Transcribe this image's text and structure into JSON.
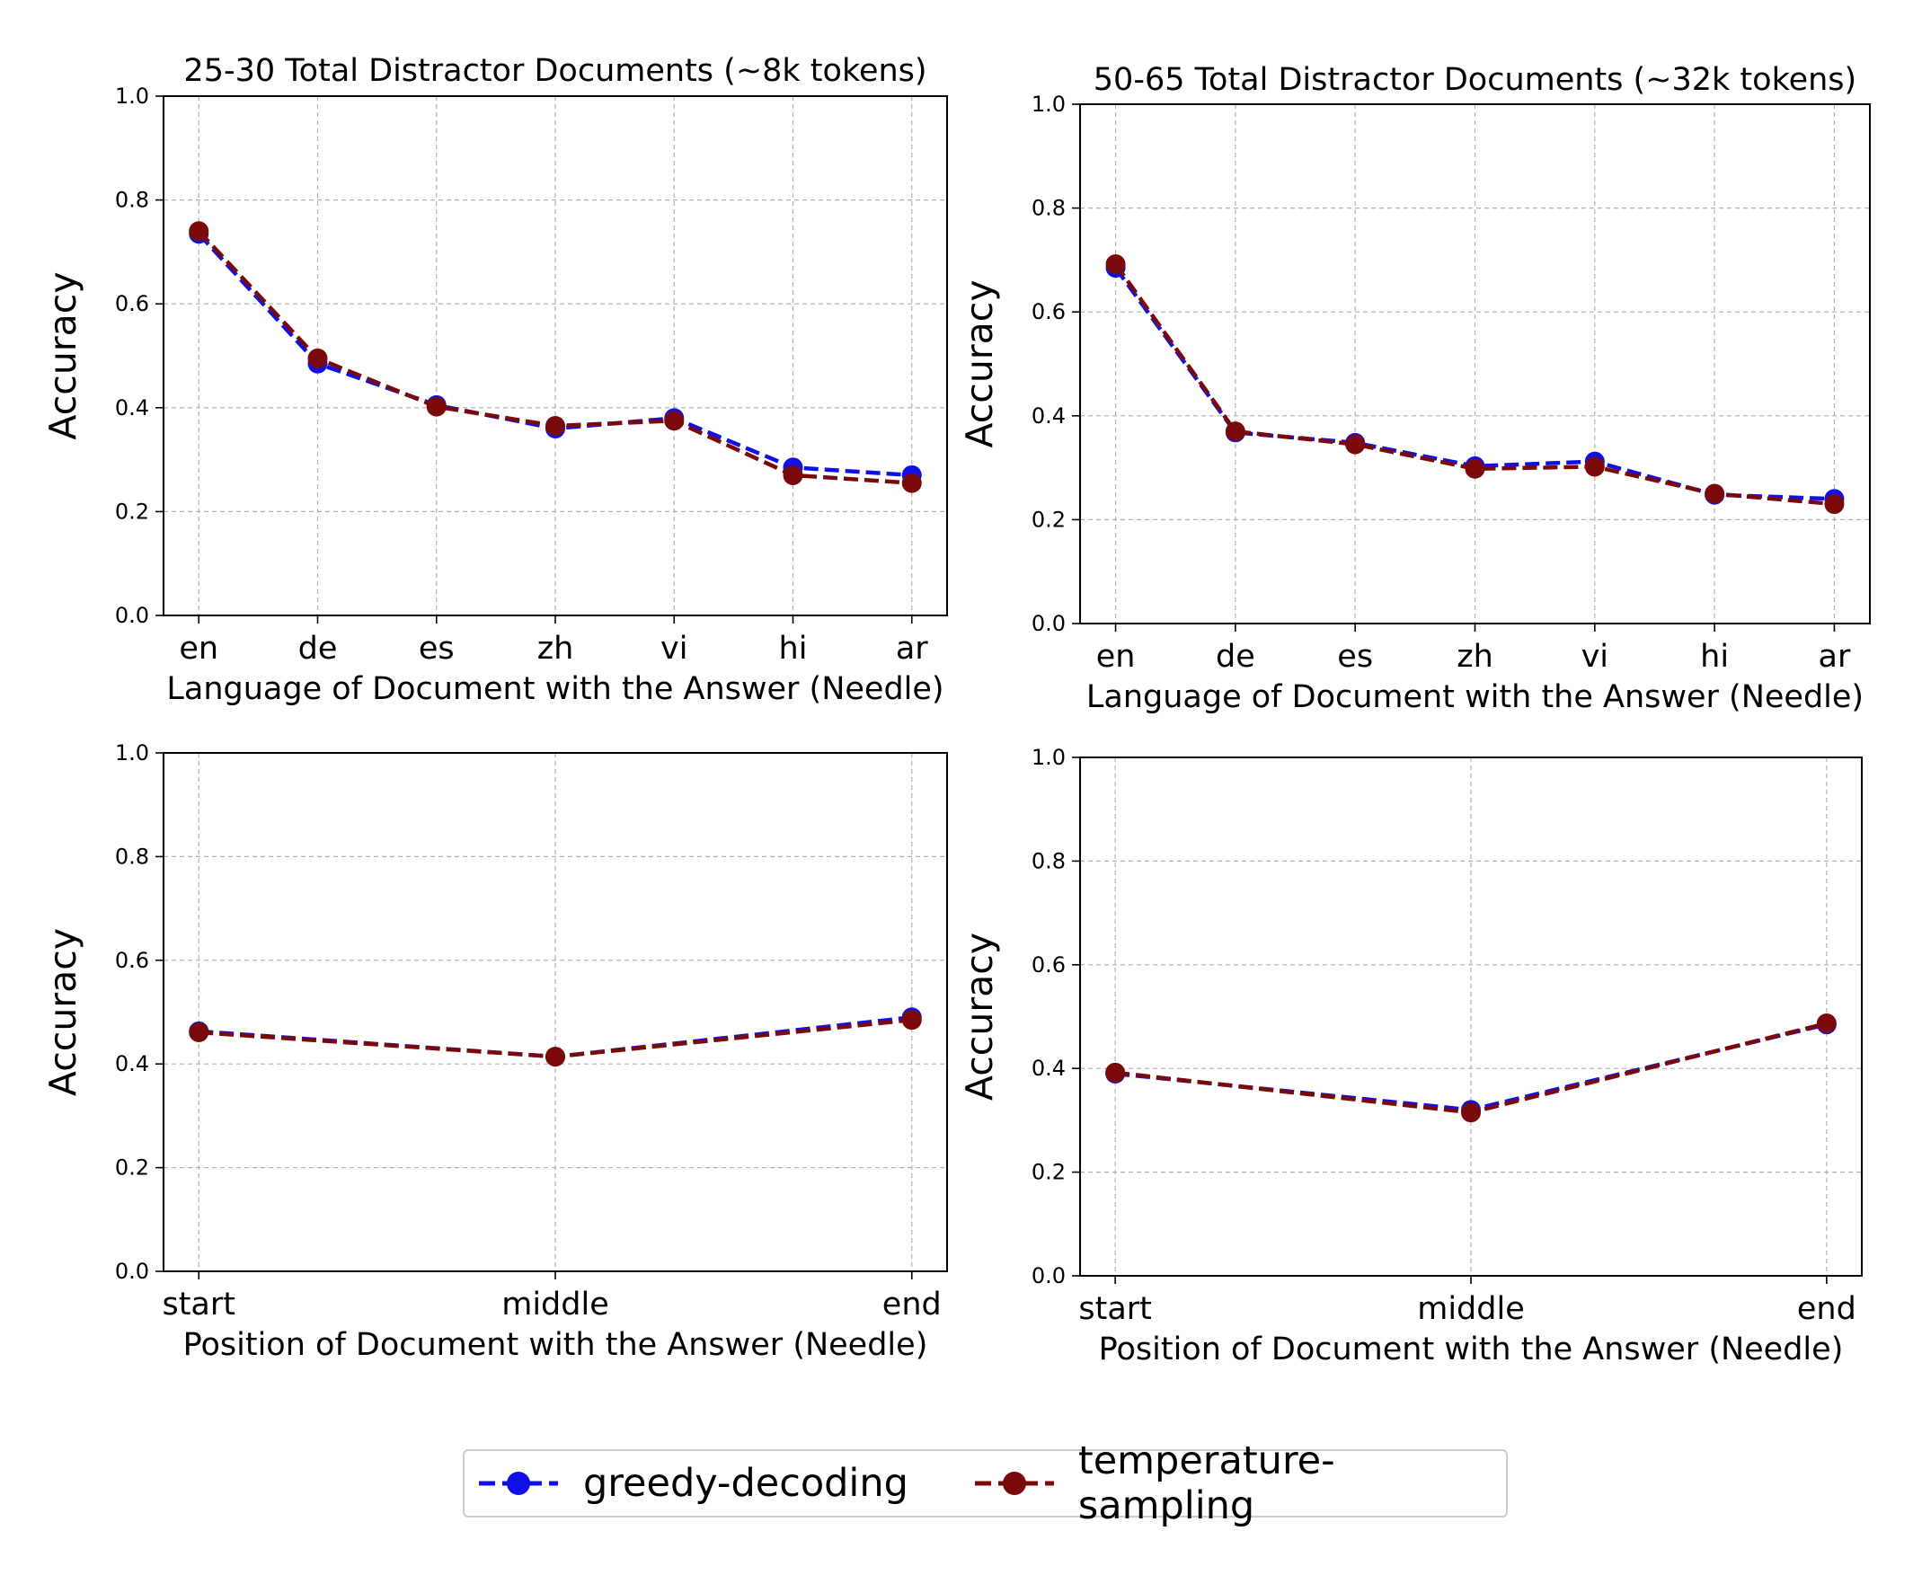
{
  "colors": {
    "greedy": "#1010e6",
    "temperature": "#7a0a0a",
    "grid": "#b0b0b0"
  },
  "legend": {
    "greedy_label": "greedy-decoding",
    "temperature_label": "temperature-sampling",
    "placement": "bottom-center"
  },
  "chart_data": [
    {
      "type": "line",
      "title": "25-30 Total Distractor Documents (~8k tokens)",
      "xlabel": "Language of Document with the Answer (Needle)",
      "ylabel": "Accuracy",
      "categories": [
        "en",
        "de",
        "es",
        "zh",
        "vi",
        "hi",
        "ar"
      ],
      "ylim": [
        0.0,
        1.0
      ],
      "yticks": [
        "0.0",
        "0.2",
        "0.4",
        "0.6",
        "0.8",
        "1.0"
      ],
      "grid": true,
      "series": [
        {
          "name": "greedy-decoding",
          "values": [
            0.735,
            0.485,
            0.405,
            0.36,
            0.38,
            0.285,
            0.27
          ]
        },
        {
          "name": "temperature-sampling",
          "values": [
            0.74,
            0.495,
            0.402,
            0.365,
            0.375,
            0.27,
            0.255
          ]
        }
      ]
    },
    {
      "type": "line",
      "title": "50-65 Total Distractor Documents (~32k tokens)",
      "xlabel": "Language of Document with the Answer (Needle)",
      "ylabel": "Accuracy",
      "categories": [
        "en",
        "de",
        "es",
        "zh",
        "vi",
        "hi",
        "ar"
      ],
      "ylim": [
        0.0,
        1.0
      ],
      "yticks": [
        "0.0",
        "0.2",
        "0.4",
        "0.6",
        "0.8",
        "1.0"
      ],
      "grid": true,
      "series": [
        {
          "name": "greedy-decoding",
          "values": [
            0.685,
            0.368,
            0.348,
            0.303,
            0.312,
            0.248,
            0.24
          ]
        },
        {
          "name": "temperature-sampling",
          "values": [
            0.692,
            0.37,
            0.345,
            0.298,
            0.302,
            0.25,
            0.23
          ]
        }
      ]
    },
    {
      "type": "line",
      "title": "",
      "xlabel": "Position of Document with the Answer (Needle)",
      "ylabel": "Accuracy",
      "categories": [
        "start",
        "middle",
        "end"
      ],
      "ylim": [
        0.0,
        1.0
      ],
      "yticks": [
        "0.0",
        "0.2",
        "0.4",
        "0.6",
        "0.8",
        "1.0"
      ],
      "grid": true,
      "series": [
        {
          "name": "greedy-decoding",
          "values": [
            0.463,
            0.414,
            0.49
          ]
        },
        {
          "name": "temperature-sampling",
          "values": [
            0.461,
            0.414,
            0.485
          ]
        }
      ]
    },
    {
      "type": "line",
      "title": "",
      "xlabel": "Position of Document with the Answer (Needle)",
      "ylabel": "Accuracy",
      "categories": [
        "start",
        "middle",
        "end"
      ],
      "ylim": [
        0.0,
        1.0
      ],
      "yticks": [
        "0.0",
        "0.2",
        "0.4",
        "0.6",
        "0.8",
        "1.0"
      ],
      "grid": true,
      "series": [
        {
          "name": "greedy-decoding",
          "values": [
            0.39,
            0.32,
            0.485
          ]
        },
        {
          "name": "temperature-sampling",
          "values": [
            0.392,
            0.315,
            0.487
          ]
        }
      ]
    }
  ]
}
